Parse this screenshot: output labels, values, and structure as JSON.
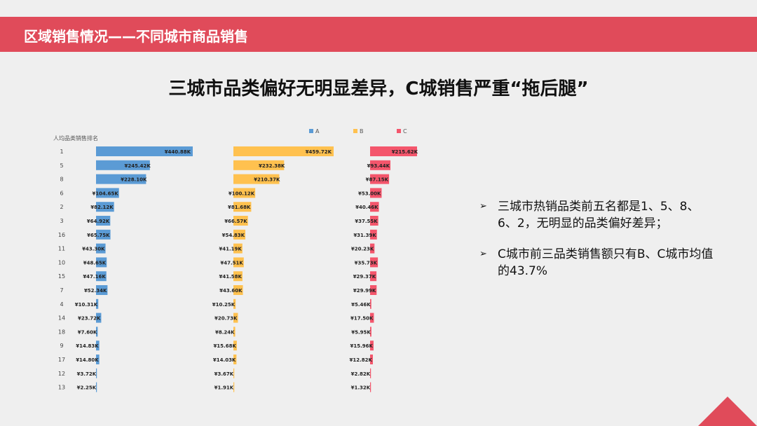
{
  "header": {
    "title": "区域销售情况——不同城市商品销售"
  },
  "main": {
    "title": "三城市品类偏好无明显差异，C城销售严重“拖后腿”"
  },
  "bullets": [
    {
      "marker": "➢",
      "text": "三城市热销品类前五名都是1、5、8、6、2，无明显的品类偏好差异；"
    },
    {
      "marker": "➢",
      "text": "C城市前三品类销售额只有B、C城市均值的43.7%"
    }
  ],
  "colors": {
    "accent": "#e04b5a",
    "A": "#5b9bd5",
    "B": "#ffc14f",
    "C": "#f4566c"
  },
  "chart_data": {
    "type": "bar",
    "title": "",
    "ylabel": "人均品类销售排名",
    "categories": [
      "1",
      "5",
      "8",
      "6",
      "2",
      "3",
      "16",
      "11",
      "10",
      "15",
      "7",
      "4",
      "14",
      "18",
      "9",
      "17",
      "12",
      "13"
    ],
    "series": [
      {
        "name": "A",
        "values": [
          440.88,
          245.42,
          228.1,
          104.65,
          82.12,
          64.92,
          65.75,
          43.3,
          48.65,
          47.16,
          52.34,
          10.31,
          23.72,
          7.6,
          14.83,
          14.8,
          3.72,
          2.25
        ],
        "labels": [
          "¥440.88K",
          "¥245.42K",
          "¥228.10K",
          "¥104.65K",
          "¥82.12K",
          "¥64.92K",
          "¥65.75K",
          "¥43.30K",
          "¥48.65K",
          "¥47.16K",
          "¥52.34K",
          "¥10.31K",
          "¥23.72K",
          "¥7.60K",
          "¥14.83K",
          "¥14.80K",
          "¥3.72K",
          "¥2.25K"
        ]
      },
      {
        "name": "B",
        "values": [
          459.72,
          232.38,
          210.37,
          100.12,
          81.68,
          66.57,
          54.83,
          41.19,
          47.51,
          41.58,
          43.6,
          10.25,
          20.73,
          8.24,
          15.68,
          14.03,
          3.67,
          1.91
        ],
        "labels": [
          "¥459.72K",
          "¥232.38K",
          "¥210.37K",
          "¥100.12K",
          "¥81.68K",
          "¥66.57K",
          "¥54.83K",
          "¥41.19K",
          "¥47.51K",
          "¥41.58K",
          "¥43.60K",
          "¥10.25K",
          "¥20.73K",
          "¥8.24K",
          "¥15.68K",
          "¥14.03K",
          "¥3.67K",
          "¥1.91K"
        ]
      },
      {
        "name": "C",
        "values": [
          215.62,
          93.44,
          87.15,
          53.0,
          40.46,
          37.55,
          31.39,
          20.23,
          35.73,
          29.37,
          29.99,
          5.46,
          17.5,
          5.95,
          15.96,
          12.82,
          2.82,
          1.32
        ],
        "labels": [
          "¥215.62K",
          "¥93.44K",
          "¥87.15K",
          "¥53.00K",
          "¥40.46K",
          "¥37.55K",
          "¥31.39K",
          "¥20.23K",
          "¥35.73K",
          "¥29.37K",
          "¥29.99K",
          "¥5.46K",
          "¥17.50K",
          "¥5.95K",
          "¥15.96K",
          "¥12.82K",
          "¥2.82K",
          "¥1.32K"
        ]
      }
    ],
    "legend": "top",
    "grid": false
  }
}
